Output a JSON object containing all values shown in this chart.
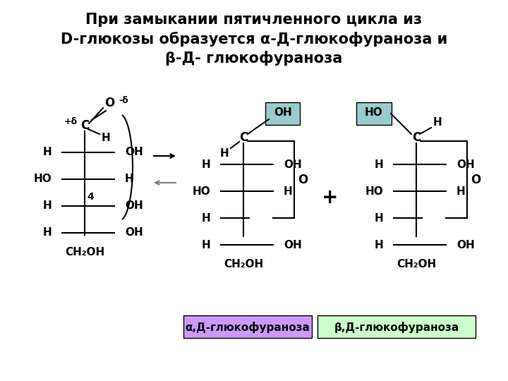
{
  "title_line1": "При замыкании пятичленного цикла из",
  "title_line2": "D-глюкозы образуется α-Д-глюкофураноза и",
  "title_line3": "β-Д- глюкофураноза",
  "bg_color": "#ffffff",
  "title_fontsize": 15,
  "label_alpha_text": "α,Д-глюкофураноза",
  "label_beta_text": "β,Д-глюкофураноза",
  "label_alpha_bg": "#cc99ff",
  "label_beta_bg": "#ccffcc",
  "oh_box_color": "#99cccc",
  "ho_box_color": "#99cccc",
  "arrow_forward_color": "black",
  "arrow_backward_color": "gray"
}
